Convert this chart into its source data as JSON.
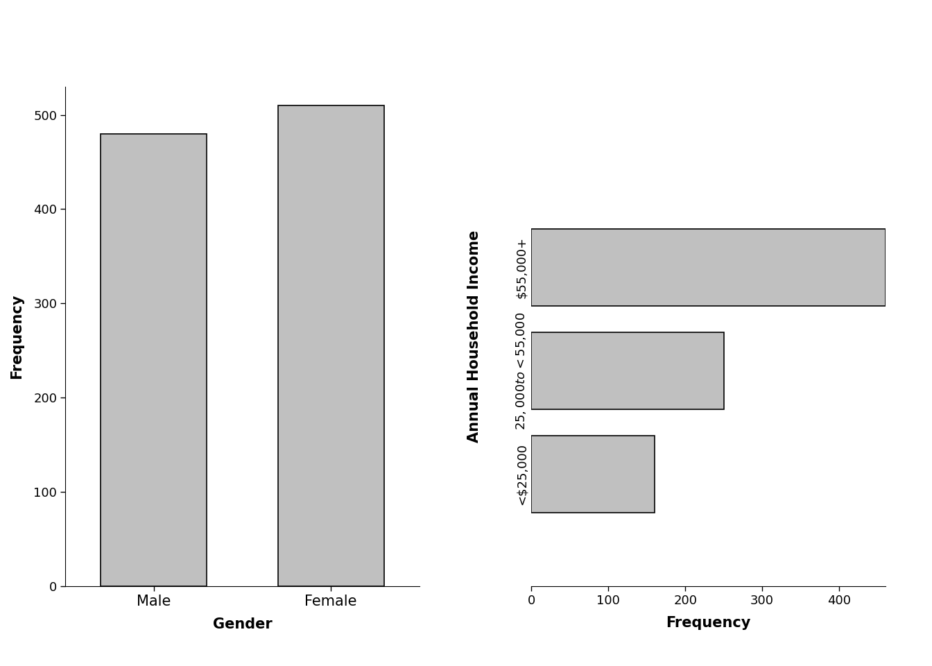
{
  "left": {
    "categories": [
      "Male",
      "Female"
    ],
    "values": [
      480,
      510
    ],
    "xlabel": "Gender",
    "ylabel": "Frequency",
    "ylim": [
      0,
      530
    ],
    "yticks": [
      0,
      100,
      200,
      300,
      400,
      500
    ]
  },
  "right": {
    "categories": [
      "<$25,000",
      "$25,000 to <$55,000",
      "$55,000+"
    ],
    "values": [
      160,
      250,
      460
    ],
    "xlabel": "Frequency",
    "ylabel": "Annual Household Income",
    "xlim": [
      0,
      460
    ],
    "xticks": [
      0,
      100,
      200,
      300,
      400
    ],
    "ylim": [
      -0.6,
      5.2
    ]
  },
  "bar_color": "#c0c0c0",
  "bar_edgecolor": "#000000",
  "background_color": "#ffffff",
  "label_fontsize": 15,
  "tick_fontsize": 13,
  "xlabel_fontsize": 15
}
